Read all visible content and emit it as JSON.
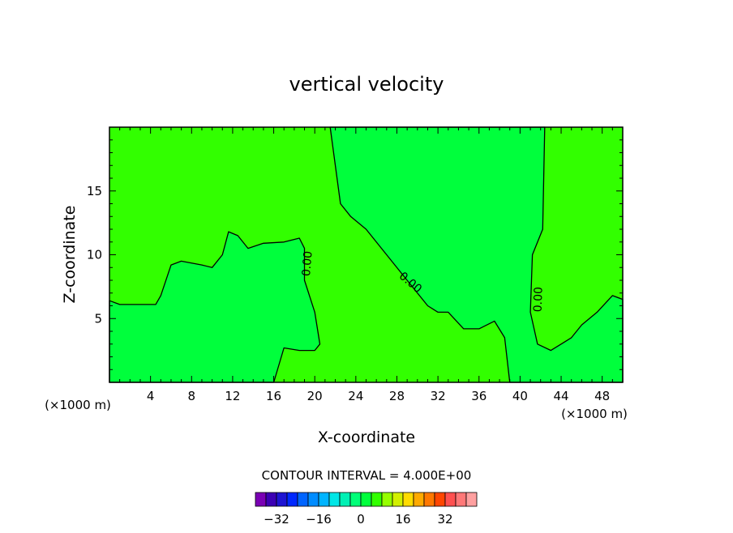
{
  "chart_data": {
    "type": "heatmap",
    "title": "vertical velocity",
    "xlabel": "X-coordinate",
    "ylabel": "Z-coordinate",
    "x_unit": "(×1000 m)",
    "y_unit": "(×1000 m)",
    "xlim": [
      0,
      50
    ],
    "ylim": [
      0,
      20
    ],
    "x_ticks": [
      4,
      8,
      12,
      16,
      20,
      24,
      28,
      32,
      36,
      40,
      44,
      48
    ],
    "y_ticks": [
      5,
      10,
      15
    ],
    "contour_interval_text": "CONTOUR INTERVAL = 4.000E+00",
    "contour_labels": [
      "0.00",
      "0.00",
      "0.00"
    ],
    "colorbar": {
      "levels": [
        -36,
        -32,
        -28,
        -24,
        -20,
        -16,
        -12,
        -8,
        -4,
        0,
        4,
        8,
        12,
        16,
        20,
        24,
        28,
        32,
        36
      ],
      "tick_labels": [
        "-32",
        "-16",
        "0",
        "16",
        "32"
      ],
      "colors": [
        "#7a00b4",
        "#3c00b4",
        "#1e14d2",
        "#0028ff",
        "#0064ff",
        "#008cff",
        "#00b4ff",
        "#00e6e6",
        "#00f0b4",
        "#00ff78",
        "#00ff3c",
        "#32ff00",
        "#96ff00",
        "#d2f000",
        "#ffdc00",
        "#ffaa00",
        "#ff7800",
        "#ff4600",
        "#ff5050",
        "#ff7878",
        "#ffa0a0"
      ]
    },
    "field_colors": {
      "weak_positive": "#32ff00",
      "weak_negative": "#00ff3c"
    },
    "regions": [
      {
        "sign": "negative",
        "outline": [
          [
            0,
            6.4
          ],
          [
            1,
            6.1
          ],
          [
            4.5,
            6.1
          ],
          [
            5,
            6.8
          ],
          [
            6,
            9.2
          ],
          [
            7,
            9.5
          ],
          [
            9,
            9.2
          ],
          [
            10,
            9.0
          ],
          [
            11,
            10.0
          ],
          [
            11.6,
            11.8
          ],
          [
            12.5,
            11.5
          ],
          [
            13.5,
            10.5
          ],
          [
            15,
            10.9
          ],
          [
            17,
            11.0
          ],
          [
            18.5,
            11.3
          ],
          [
            19,
            10.5
          ],
          [
            19,
            8.0
          ],
          [
            20,
            5.5
          ],
          [
            20.5,
            3.0
          ],
          [
            20,
            2.5
          ],
          [
            18.5,
            2.5
          ],
          [
            17,
            2.7
          ],
          [
            16,
            0
          ],
          [
            0,
            0
          ]
        ]
      },
      {
        "sign": "negative",
        "outline": [
          [
            21.5,
            20
          ],
          [
            22.5,
            14
          ],
          [
            23.5,
            13
          ],
          [
            25,
            12
          ],
          [
            27,
            10
          ],
          [
            29,
            8
          ],
          [
            31,
            6
          ],
          [
            32,
            5.5
          ],
          [
            33,
            5.5
          ],
          [
            34.5,
            4.2
          ],
          [
            36,
            4.2
          ],
          [
            37.5,
            4.8
          ],
          [
            38.5,
            3.5
          ],
          [
            39,
            0
          ],
          [
            50,
            0
          ],
          [
            50,
            6.5
          ],
          [
            49,
            6.8
          ],
          [
            47.5,
            5.5
          ],
          [
            46,
            4.5
          ],
          [
            45,
            3.5
          ],
          [
            44,
            3.0
          ],
          [
            43,
            2.5
          ],
          [
            41.7,
            3.0
          ],
          [
            41,
            5.5
          ],
          [
            41.2,
            10
          ],
          [
            42.2,
            12
          ],
          [
            42.4,
            20
          ]
        ]
      }
    ]
  }
}
